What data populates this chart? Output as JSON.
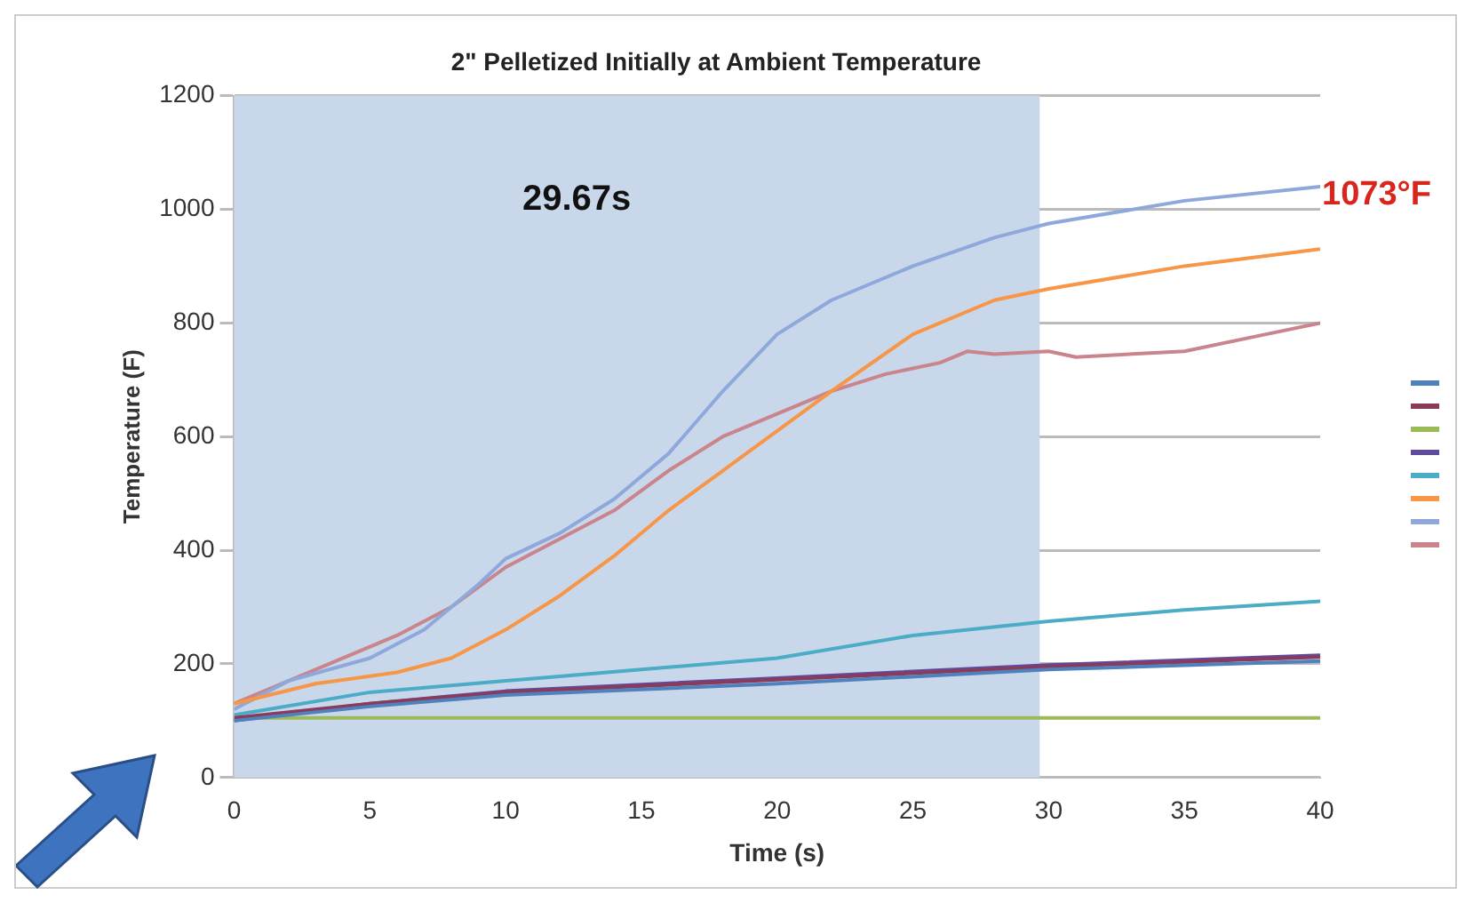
{
  "chart_data": {
    "type": "line",
    "title": "2\" Pelletized Initially at Ambient Temperature",
    "xlabel": "Time (s)",
    "ylabel": "Temperature (F)",
    "xlim": [
      0,
      40
    ],
    "xticks": [
      0,
      5,
      10,
      15,
      20,
      25,
      30,
      35,
      40
    ],
    "ylim": [
      0,
      1200
    ],
    "yticks": [
      0,
      200,
      400,
      600,
      800,
      1000,
      1200
    ],
    "grid": "y",
    "legend": false,
    "marker": "none",
    "line_style": "solid",
    "bands": [
      {
        "axis": "x",
        "from": 0,
        "to": 29.67,
        "color": "#c9d7ea"
      }
    ],
    "annotations": [
      "29.67s",
      "1073°F"
    ],
    "series": [
      {
        "color": "#4f81bd",
        "x": [
          0,
          5,
          10,
          20,
          30,
          40
        ],
        "values": [
          100,
          125,
          145,
          165,
          190,
          205
        ]
      },
      {
        "color": "#8b3a5a",
        "x": [
          0,
          5,
          10,
          20,
          30,
          40
        ],
        "values": [
          105,
          130,
          150,
          172,
          195,
          212
        ]
      },
      {
        "color": "#9bbb59",
        "x": [
          0,
          40
        ],
        "values": [
          105,
          105
        ]
      },
      {
        "color": "#604a9b",
        "x": [
          0,
          5,
          10,
          20,
          30,
          40
        ],
        "values": [
          100,
          130,
          152,
          175,
          198,
          215
        ]
      },
      {
        "color": "#4bacc6",
        "x": [
          0,
          5,
          10,
          15,
          20,
          25,
          30,
          35,
          40
        ],
        "values": [
          110,
          150,
          170,
          190,
          210,
          250,
          275,
          295,
          310
        ]
      },
      {
        "color": "#f79646",
        "x": [
          0,
          3,
          6,
          8,
          10,
          12,
          14,
          16,
          18,
          20,
          22,
          25,
          28,
          30,
          35,
          40
        ],
        "values": [
          130,
          165,
          185,
          210,
          260,
          320,
          390,
          470,
          540,
          610,
          680,
          780,
          840,
          860,
          900,
          930
        ]
      },
      {
        "color": "#8fa8dc",
        "x": [
          0,
          2,
          5,
          7,
          9,
          10,
          12,
          14,
          16,
          18,
          20,
          22,
          25,
          28,
          30,
          35,
          40
        ],
        "values": [
          120,
          170,
          210,
          260,
          340,
          385,
          430,
          490,
          570,
          680,
          780,
          840,
          900,
          950,
          975,
          1015,
          1040
        ]
      },
      {
        "color": "#c9848c",
        "x": [
          0,
          3,
          6,
          8,
          10,
          12,
          14,
          16,
          18,
          20,
          22,
          24,
          26,
          27,
          28,
          30,
          31,
          35,
          38,
          40
        ],
        "values": [
          130,
          190,
          250,
          300,
          370,
          420,
          470,
          540,
          600,
          640,
          680,
          710,
          730,
          750,
          745,
          750,
          740,
          750,
          780,
          800
        ]
      }
    ]
  }
}
